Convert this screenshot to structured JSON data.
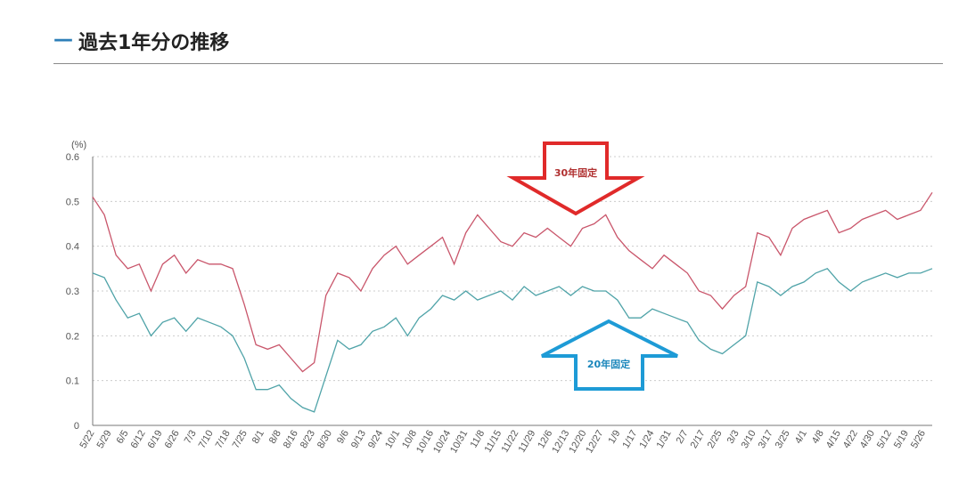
{
  "section": {
    "dash": "—",
    "title": "過去1年分の推移"
  },
  "colors": {
    "series_30": "#c9566b",
    "series_20": "#4fa3a8",
    "arrow_30": "#e02a2a",
    "arrow_20": "#1e9bd6",
    "grid": "#cccccc",
    "axis": "#777777"
  },
  "chart_data": {
    "type": "line",
    "ylabel": "(%)",
    "ylim": [
      0,
      0.6
    ],
    "yticks": [
      "0",
      "0.1",
      "0.2",
      "0.3",
      "0.4",
      "0.5",
      "0.6"
    ],
    "ytick_values": [
      0,
      0.1,
      0.2,
      0.3,
      0.4,
      0.5,
      0.6
    ],
    "xticks": [
      "5/22",
      "5/29",
      "6/5",
      "6/12",
      "6/19",
      "6/26",
      "7/3",
      "7/10",
      "7/18",
      "7/25",
      "8/1",
      "8/8",
      "8/16",
      "8/23",
      "8/30",
      "9/6",
      "9/13",
      "9/24",
      "10/1",
      "10/8",
      "10/16",
      "10/24",
      "10/31",
      "11/8",
      "11/15",
      "11/22",
      "11/29",
      "12/6",
      "12/13",
      "12/20",
      "12/27",
      "1/9",
      "1/17",
      "1/24",
      "1/31",
      "2/7",
      "2/17",
      "2/25",
      "3/3",
      "3/10",
      "3/17",
      "3/25",
      "4/1",
      "4/8",
      "4/15",
      "4/22",
      "4/30",
      "5/12",
      "5/19",
      "5/26"
    ],
    "series": [
      {
        "name": "30年固定",
        "values": [
          0.51,
          0.47,
          0.38,
          0.35,
          0.36,
          0.3,
          0.36,
          0.38,
          0.34,
          0.37,
          0.36,
          0.36,
          0.35,
          0.27,
          0.18,
          0.17,
          0.18,
          0.15,
          0.12,
          0.14,
          0.29,
          0.34,
          0.33,
          0.3,
          0.35,
          0.38,
          0.4,
          0.36,
          0.38,
          0.4,
          0.42,
          0.36,
          0.43,
          0.47,
          0.44,
          0.41,
          0.4,
          0.43,
          0.42,
          0.44,
          0.42,
          0.4,
          0.44,
          0.45,
          0.47,
          0.42,
          0.39,
          0.37,
          0.35,
          0.38,
          0.36,
          0.34,
          0.3,
          0.29,
          0.26,
          0.29,
          0.31,
          0.43,
          0.42,
          0.38,
          0.44,
          0.46,
          0.47,
          0.48,
          0.43,
          0.44,
          0.46,
          0.47,
          0.48,
          0.46,
          0.47,
          0.48,
          0.52
        ]
      },
      {
        "name": "20年固定",
        "values": [
          0.34,
          0.33,
          0.28,
          0.24,
          0.25,
          0.2,
          0.23,
          0.24,
          0.21,
          0.24,
          0.23,
          0.22,
          0.2,
          0.15,
          0.08,
          0.08,
          0.09,
          0.06,
          0.04,
          0.03,
          0.11,
          0.19,
          0.17,
          0.18,
          0.21,
          0.22,
          0.24,
          0.2,
          0.24,
          0.26,
          0.29,
          0.28,
          0.3,
          0.28,
          0.29,
          0.3,
          0.28,
          0.31,
          0.29,
          0.3,
          0.31,
          0.29,
          0.31,
          0.3,
          0.3,
          0.28,
          0.24,
          0.24,
          0.26,
          0.25,
          0.24,
          0.23,
          0.19,
          0.17,
          0.16,
          0.18,
          0.2,
          0.32,
          0.31,
          0.29,
          0.31,
          0.32,
          0.34,
          0.35,
          0.32,
          0.3,
          0.32,
          0.33,
          0.34,
          0.33,
          0.34,
          0.34,
          0.35
        ]
      }
    ],
    "annotations": [
      "30年固定",
      "20年固定"
    ]
  }
}
